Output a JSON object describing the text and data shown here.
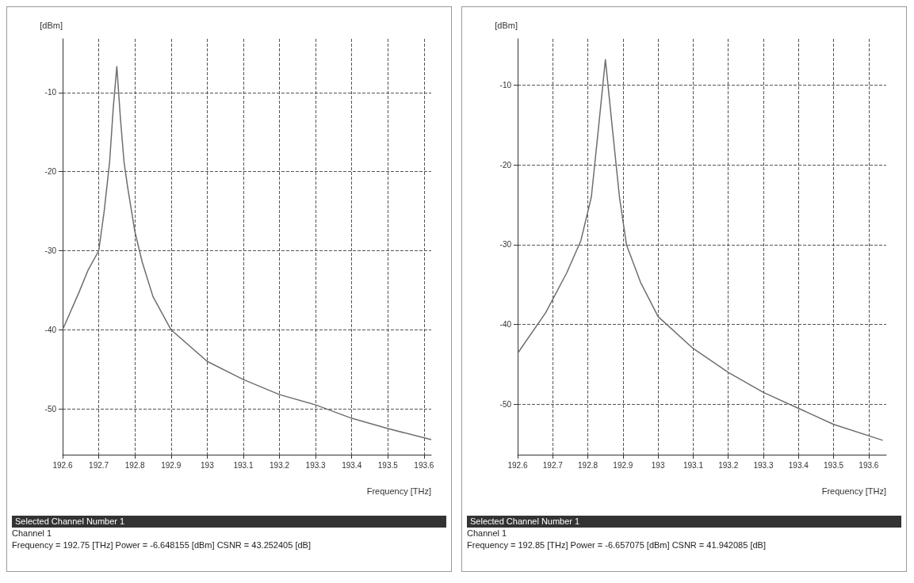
{
  "chart_data": [
    {
      "type": "line",
      "xlabel": "Frequency [THz]",
      "ylabel": "[dBm]",
      "xlim": [
        192.6,
        193.62
      ],
      "ylim": [
        -55.8,
        -3.2
      ],
      "xticks": [
        192.6,
        192.7,
        192.8,
        192.9,
        193,
        193.1,
        193.2,
        193.3,
        193.4,
        193.5,
        193.6
      ],
      "yticks": [
        -50,
        -40,
        -30,
        -20,
        -10
      ],
      "grid": true,
      "marker": "none",
      "line_style": "solid",
      "annotations": [
        "Selected Channel Number 1",
        "Channel 1",
        "Frequency = 192.75 [THz] Power = -6.648155 [dBm] CSNR = 43.252405 [dB]"
      ],
      "series": [
        {
          "color": "#6e6e6e",
          "x": [
            192.6,
            192.645,
            192.67,
            192.7,
            192.715,
            192.73,
            192.74,
            192.75,
            192.76,
            192.77,
            192.78,
            192.8,
            192.82,
            192.85,
            192.9,
            193,
            193.1,
            193.2,
            193.3,
            193.4,
            193.5,
            193.62
          ],
          "values": [
            -40,
            -35.3,
            -32.5,
            -30,
            -25,
            -18.8,
            -12,
            -6.7,
            -13.3,
            -18.8,
            -22,
            -27.6,
            -31.4,
            -35.8,
            -40,
            -44,
            -46.3,
            -48.2,
            -49.5,
            -51.2,
            -52.5,
            -53.9
          ]
        }
      ]
    },
    {
      "type": "line",
      "xlabel": "Frequency [THz]",
      "ylabel": "[dBm]",
      "xlim": [
        192.6,
        193.65
      ],
      "ylim": [
        -56.3,
        -4.2
      ],
      "xticks": [
        192.6,
        192.7,
        192.8,
        192.9,
        193,
        193.1,
        193.2,
        193.3,
        193.4,
        193.5,
        193.6
      ],
      "yticks": [
        -50,
        -40,
        -30,
        -20,
        -10
      ],
      "grid": true,
      "marker": "none",
      "line_style": "solid",
      "annotations": [
        "Selected Channel Number 1",
        "Channel 1",
        "Frequency = 192.85 [THz] Power = -6.657075 [dBm] CSNR = 41.942085 [dB]"
      ],
      "series": [
        {
          "color": "#6e6e6e",
          "x": [
            192.6,
            192.68,
            192.74,
            192.78,
            192.81,
            192.83,
            192.85,
            192.87,
            192.89,
            192.91,
            192.95,
            193,
            193.1,
            193.2,
            193.3,
            193.4,
            193.5,
            193.64
          ],
          "values": [
            -43.6,
            -38.5,
            -33.5,
            -29.5,
            -24,
            -15.5,
            -6.8,
            -15.5,
            -24,
            -30,
            -34.7,
            -39,
            -43,
            -46,
            -48.5,
            -50.5,
            -52.5,
            -54.5
          ]
        }
      ]
    }
  ]
}
